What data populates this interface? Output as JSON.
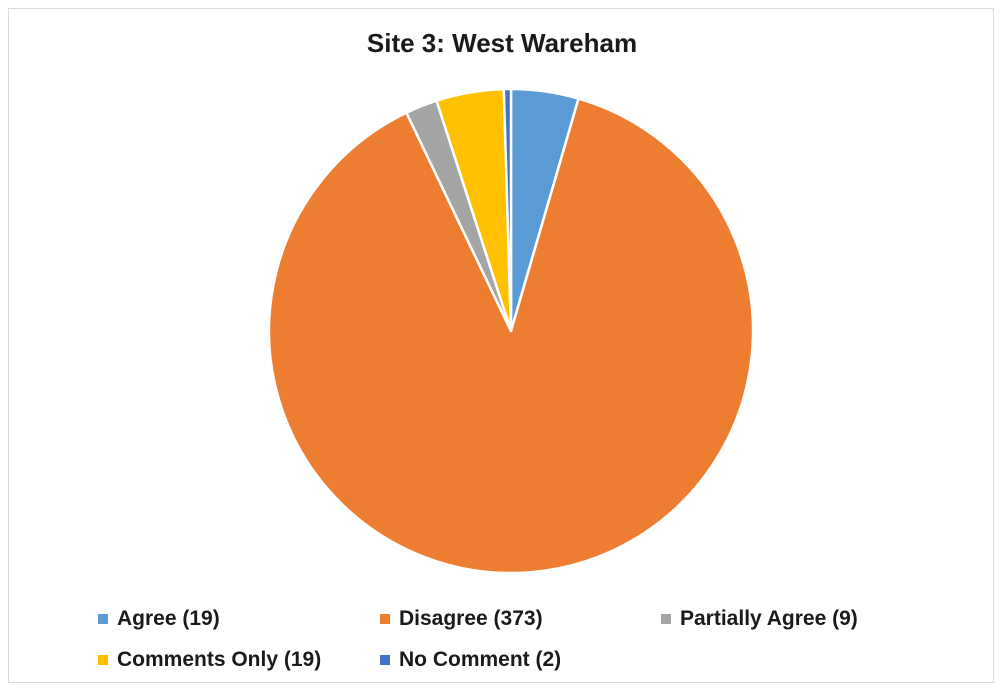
{
  "chart_data": {
    "type": "pie",
    "title": "Site 3: West Wareham",
    "slices": [
      {
        "label": "Agree",
        "value": 19,
        "color": "#5B9BD5",
        "legend": "Agree (19)"
      },
      {
        "label": "Disagree",
        "value": 373,
        "color": "#ED7D31",
        "legend": "Disagree (373)"
      },
      {
        "label": "Partially Agree",
        "value": 9,
        "color": "#A5A5A5",
        "legend": "Partially Agree (9)"
      },
      {
        "label": "Comments Only",
        "value": 19,
        "color": "#FFC000",
        "legend": "Comments Only (19)"
      },
      {
        "label": "No Comment",
        "value": 2,
        "color": "#4472C4",
        "legend": "No Comment (2)"
      }
    ],
    "legend_position": "bottom",
    "start_angle": "top, clockwise"
  }
}
